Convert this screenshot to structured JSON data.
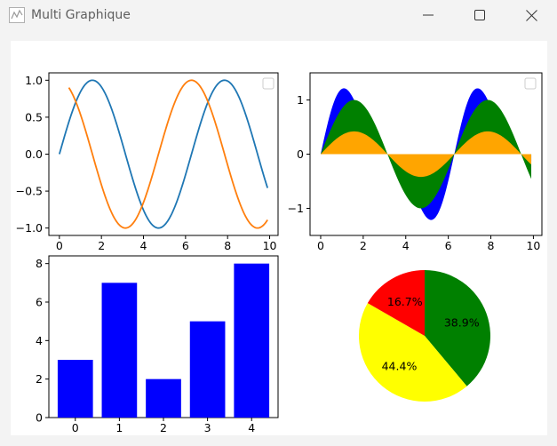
{
  "window": {
    "title": "Multi Graphique",
    "minimize_icon": "minimize-icon",
    "maximize_icon": "maximize-icon",
    "close_icon": "close-icon"
  },
  "chart_data": [
    {
      "type": "line",
      "functions": [
        "sin(x)",
        "cos(x)"
      ],
      "x_range": [
        0,
        9.9
      ],
      "series": [
        {
          "color": "#1f77b4",
          "x_start": 0,
          "x_end": 9.9
        },
        {
          "color": "#ff7f0e",
          "x_start": 0.45,
          "x_end": 9.9
        }
      ],
      "xlim": [
        -0.5,
        10.4
      ],
      "ylim": [
        -1.1,
        1.1
      ],
      "x_ticks": [
        "0",
        "2",
        "4",
        "6",
        "8",
        "10"
      ],
      "y_ticks": [
        "1.0",
        "0.5",
        "0.0",
        "−0.5",
        "−1.0"
      ],
      "legend": "top-right (empty)"
    },
    {
      "type": "area",
      "series": [
        {
          "color": "#0000ff",
          "function": "sin(x)+0.4·sin(2x)"
        },
        {
          "color": "#008000",
          "function": "sin(x)"
        },
        {
          "color": "#ffa500",
          "function": "0.42·sin(x)"
        }
      ],
      "x_range": [
        0,
        9.9
      ],
      "xlim": [
        -0.5,
        10.4
      ],
      "ylim": [
        -1.5,
        1.5
      ],
      "x_ticks": [
        "0",
        "2",
        "4",
        "6",
        "8",
        "10"
      ],
      "y_ticks": [
        "1",
        "0",
        "−1"
      ],
      "legend": "top-right (empty)"
    },
    {
      "type": "bar",
      "categories": [
        "0",
        "1",
        "2",
        "3",
        "4"
      ],
      "values": [
        3,
        7,
        2,
        5,
        8
      ],
      "color": "#0000ff",
      "ylim": [
        0,
        8.4
      ],
      "y_ticks": [
        "0",
        "2",
        "4",
        "6",
        "8"
      ]
    },
    {
      "type": "pie",
      "slices": [
        {
          "label": "38.9%",
          "value": 38.9,
          "color": "#008000"
        },
        {
          "label": "44.4%",
          "value": 44.4,
          "color": "#ffff00"
        },
        {
          "label": "16.7%",
          "value": 16.7,
          "color": "#ff0000"
        }
      ],
      "start_angle_deg": 90,
      "direction": "clockwise"
    }
  ]
}
